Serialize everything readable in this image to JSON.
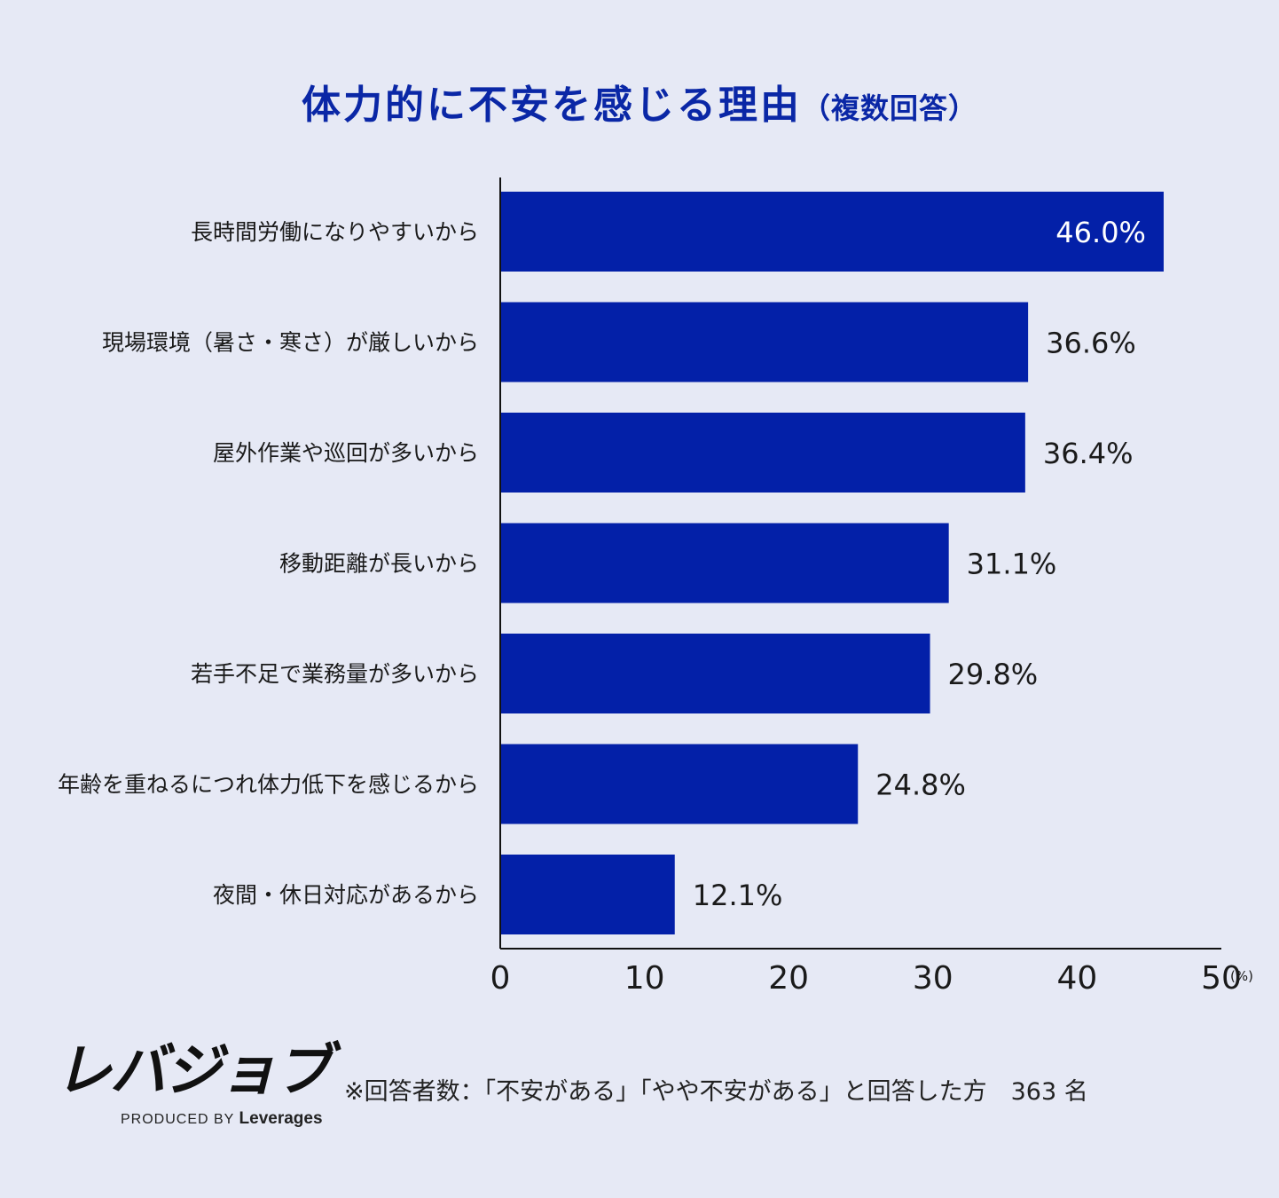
{
  "title": {
    "main": "体力的に不安を感じる理由",
    "sub": "（複数回答）"
  },
  "chart_data": {
    "type": "bar",
    "orientation": "horizontal",
    "title": "体力的に不安を感じる理由（複数回答）",
    "categories": [
      "長時間労働になりやすいから",
      "現場環境（暑さ・寒さ）が厳しいから",
      "屋外作業や巡回が多いから",
      "移動距離が長いから",
      "若手不足で業務量が多いから",
      "年齢を重ねるにつれ体力低下を感じるから",
      "夜間・休日対応があるから"
    ],
    "values": [
      46.0,
      36.6,
      36.4,
      31.1,
      29.8,
      24.8,
      12.1
    ],
    "value_labels": [
      "46.0%",
      "36.6%",
      "36.4%",
      "31.1%",
      "29.8%",
      "24.8%",
      "12.1%"
    ],
    "xlim": [
      0,
      50
    ],
    "xticks": [
      "0",
      "10",
      "20",
      "30",
      "40",
      "50"
    ],
    "xunit": "(%)",
    "bar_color": "#0320a8",
    "grid": false
  },
  "footer": {
    "logo_text": "レバジョブ",
    "logo_sub_prefix": "PRODUCED BY",
    "logo_sub_brand": "Leverages",
    "note": "※回答者数：「不安がある」「やや不安がある」と回答した方　363 名"
  }
}
